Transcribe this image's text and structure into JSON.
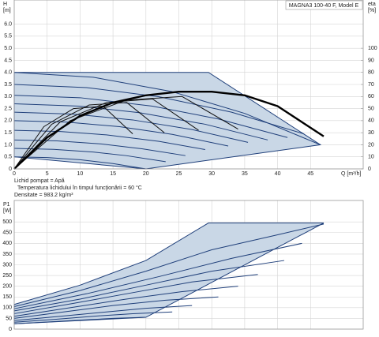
{
  "chart_data": [
    {
      "type": "line",
      "title": "MAGNA3 100-40 F, Model E",
      "y_label": "H",
      "y_unit": "[m]",
      "y2_label": "eta",
      "y2_unit": "[%]",
      "x_label": "Q [m³/h]",
      "annotations": [
        "Lichid pompat = Apă",
        "Temperatura lichidului în timpul funcţionării = 60 °C",
        "Densitate = 983.2  kg/m³"
      ],
      "grid": true,
      "xlim": [
        0,
        53
      ],
      "xticks": [
        0,
        5,
        10,
        15,
        20,
        25,
        30,
        35,
        40,
        45
      ],
      "ylim": [
        0,
        7
      ],
      "yticks": [
        0,
        0.5,
        {
          "value": 1,
          "label": "1.0"
        },
        1.5,
        {
          "value": 2,
          "label": "2.0"
        },
        2.5,
        {
          "value": 3,
          "label": "3.0"
        },
        3.5,
        {
          "value": 4,
          "label": "4.0"
        },
        4.5,
        {
          "value": 5,
          "label": "5.0"
        },
        5.5,
        {
          "value": 6,
          "label": "6.0"
        }
      ],
      "y2lim": [
        0,
        140
      ],
      "y2ticks": [
        0,
        10,
        20,
        30,
        40,
        50,
        60,
        70,
        80,
        90,
        100
      ],
      "area": {
        "color": "#c9d7e6",
        "edge_color": "#1f3f7a",
        "x": [
          0,
          29.5,
          46.5,
          20,
          0
        ],
        "values": [
          4.0,
          4.0,
          1.0,
          0,
          0.5
        ]
      },
      "series": [
        {
          "color": "#1f3f7a",
          "x": [
            0,
            12,
            24,
            35,
            46.5
          ],
          "values": [
            4.0,
            3.8,
            3.2,
            2.3,
            1.0
          ]
        },
        {
          "color": "#1f3f7a",
          "x": [
            0,
            11,
            22,
            33,
            44
          ],
          "values": [
            3.5,
            3.37,
            2.99,
            2.35,
            1.45
          ]
        },
        {
          "color": "#1f3f7a",
          "x": [
            0,
            10,
            21,
            31,
            41.5
          ],
          "values": [
            3.05,
            2.95,
            2.6,
            2.07,
            1.3
          ]
        },
        {
          "color": "#1f3f7a",
          "x": [
            0,
            10,
            19,
            29,
            38.5
          ],
          "values": [
            2.7,
            2.6,
            2.33,
            1.85,
            1.2
          ]
        },
        {
          "color": "#1f3f7a",
          "x": [
            0,
            9,
            18,
            27,
            35.5
          ],
          "values": [
            2.35,
            2.27,
            2.03,
            1.63,
            1.1
          ]
        },
        {
          "color": "#1f3f7a",
          "x": [
            0,
            8,
            16,
            24,
            32.5
          ],
          "values": [
            2.0,
            1.94,
            1.75,
            1.43,
            0.95
          ]
        },
        {
          "color": "#1f3f7a",
          "x": [
            0,
            7,
            14,
            22,
            29
          ],
          "values": [
            1.6,
            1.55,
            1.41,
            1.14,
            0.8
          ]
        },
        {
          "color": "#1f3f7a",
          "x": [
            0,
            6.5,
            13,
            19.5,
            26
          ],
          "values": [
            1.2,
            1.16,
            1.04,
            0.83,
            0.55
          ]
        },
        {
          "color": "#1f3f7a",
          "x": [
            0,
            6,
            12,
            17,
            23
          ],
          "values": [
            0.85,
            0.81,
            0.7,
            0.55,
            0.3
          ]
        },
        {
          "color": "#1f3f7a",
          "x": [
            0,
            5,
            10,
            15,
            20
          ],
          "values": [
            0.5,
            0.47,
            0.38,
            0.22,
            0
          ]
        },
        {
          "color": "#111111",
          "axis": "y2",
          "x": [
            0,
            8.5,
            17,
            25.5,
            34
          ],
          "values": [
            0,
            40,
            57,
            60,
            33
          ]
        },
        {
          "color": "#111111",
          "axis": "y2",
          "x": [
            0,
            7,
            14,
            21,
            28
          ],
          "values": [
            0,
            39,
            55,
            58,
            32
          ]
        },
        {
          "color": "#111111",
          "axis": "y2",
          "x": [
            0,
            5.7,
            11.4,
            17.1,
            22.8
          ],
          "values": [
            0,
            37,
            53,
            55,
            30
          ]
        },
        {
          "color": "#111111",
          "axis": "y2",
          "x": [
            0,
            4.5,
            9,
            13.5,
            18
          ],
          "values": [
            0,
            35,
            50,
            52,
            29
          ]
        },
        {
          "color": "#000000",
          "axis": "y2",
          "width": 2.4,
          "x": [
            0,
            5,
            10,
            15,
            20,
            25,
            30,
            35,
            40,
            47
          ],
          "values": [
            0,
            26,
            44,
            55,
            61,
            64,
            64,
            61,
            52,
            27
          ]
        }
      ]
    },
    {
      "type": "line",
      "y_label": "P1",
      "y_unit": "[W]",
      "grid": true,
      "xlim": [
        0,
        53
      ],
      "ylim": [
        0,
        600
      ],
      "yticks": [
        0,
        50,
        100,
        150,
        200,
        250,
        300,
        350,
        400,
        450,
        500
      ],
      "area": {
        "color": "#c9d7e6",
        "edge_color": "#1f3f7a",
        "x": [
          0,
          10,
          20,
          29.5,
          47,
          20,
          0
        ],
        "values": [
          115,
          205,
          320,
          495,
          495,
          55,
          25
        ]
      },
      "series": [
        {
          "color": "#1f3f7a",
          "x": [
            0,
            10,
            20,
            30,
            40,
            47
          ],
          "values": [
            105,
            180,
            270,
            370,
            440,
            490
          ]
        },
        {
          "color": "#1f3f7a",
          "x": [
            0,
            11,
            22,
            33,
            43.7
          ],
          "values": [
            95,
            165,
            245,
            330,
            400
          ]
        },
        {
          "color": "#1f3f7a",
          "x": [
            0,
            10,
            20,
            30,
            41
          ],
          "values": [
            85,
            140,
            205,
            270,
            320
          ]
        },
        {
          "color": "#1f3f7a",
          "x": [
            0,
            9,
            18,
            27,
            37
          ],
          "values": [
            72,
            120,
            170,
            220,
            255
          ]
        },
        {
          "color": "#1f3f7a",
          "x": [
            0,
            8.5,
            17,
            25.5,
            34
          ],
          "values": [
            60,
            100,
            140,
            175,
            200
          ]
        },
        {
          "color": "#1f3f7a",
          "x": [
            0,
            7.5,
            15,
            23,
            31
          ],
          "values": [
            50,
            80,
            110,
            135,
            150
          ]
        },
        {
          "color": "#1f3f7a",
          "x": [
            0,
            7,
            14,
            20,
            27
          ],
          "values": [
            40,
            60,
            80,
            97,
            110
          ]
        },
        {
          "color": "#1f3f7a",
          "x": [
            0,
            6,
            12,
            18,
            24
          ],
          "values": [
            32,
            45,
            60,
            72,
            80
          ]
        },
        {
          "color": "#1f3f7a",
          "x": [
            0,
            5,
            10,
            15,
            20
          ],
          "values": [
            25,
            33,
            42,
            50,
            55
          ]
        }
      ]
    }
  ]
}
